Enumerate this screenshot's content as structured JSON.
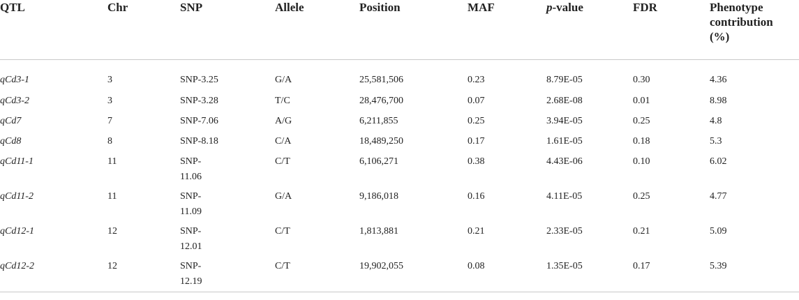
{
  "table": {
    "headers": {
      "qtl": "QTL",
      "chr": "Chr",
      "snp": "SNP",
      "allele": "Allele",
      "position": "Position",
      "maf": "MAF",
      "pvalue_italic": "p",
      "pvalue_rest": "-value",
      "fdr": "FDR",
      "phenotype_line1": "Phenotype",
      "phenotype_line2": "contribution",
      "phenotype_line3": "(%)"
    },
    "rows": [
      {
        "qtl": "qCd3-1",
        "chr": "3",
        "snp": "SNP-3.25",
        "allele": "G/A",
        "position": "25,581,506",
        "maf": "0.23",
        "pvalue": "8.79E-05",
        "fdr": "0.30",
        "phenotype": "4.36"
      },
      {
        "qtl": "qCd3-2",
        "chr": "3",
        "snp": "SNP-3.28",
        "allele": "T/C",
        "position": "28,476,700",
        "maf": "0.07",
        "pvalue": "2.68E-08",
        "fdr": "0.01",
        "phenotype": "8.98"
      },
      {
        "qtl": "qCd7",
        "chr": "7",
        "snp": "SNP-7.06",
        "allele": "A/G",
        "position": "6,211,855",
        "maf": "0.25",
        "pvalue": "3.94E-05",
        "fdr": "0.25",
        "phenotype": "4.8"
      },
      {
        "qtl": "qCd8",
        "chr": "8",
        "snp": "SNP-8.18",
        "allele": "C/A",
        "position": "18,489,250",
        "maf": "0.17",
        "pvalue": "1.61E-05",
        "fdr": "0.18",
        "phenotype": "5.3"
      },
      {
        "qtl": "qCd11-1",
        "chr": "11",
        "snp": "SNP-11.06",
        "allele": "C/T",
        "position": "6,106,271",
        "maf": "0.38",
        "pvalue": "4.43E-06",
        "fdr": "0.10",
        "phenotype": "6.02"
      },
      {
        "qtl": "qCd11-2",
        "chr": "11",
        "snp": "SNP-11.09",
        "allele": "G/A",
        "position": "9,186,018",
        "maf": "0.16",
        "pvalue": "4.11E-05",
        "fdr": "0.25",
        "phenotype": "4.77"
      },
      {
        "qtl": "qCd12-1",
        "chr": "12",
        "snp": "SNP-12.01",
        "allele": "C/T",
        "position": "1,813,881",
        "maf": "0.21",
        "pvalue": "2.33E-05",
        "fdr": "0.21",
        "phenotype": "5.09"
      },
      {
        "qtl": "qCd12-2",
        "chr": "12",
        "snp": "SNP-12.19",
        "allele": "C/T",
        "position": "19,902,055",
        "maf": "0.08",
        "pvalue": "1.35E-05",
        "fdr": "0.17",
        "phenotype": "5.39"
      }
    ]
  }
}
